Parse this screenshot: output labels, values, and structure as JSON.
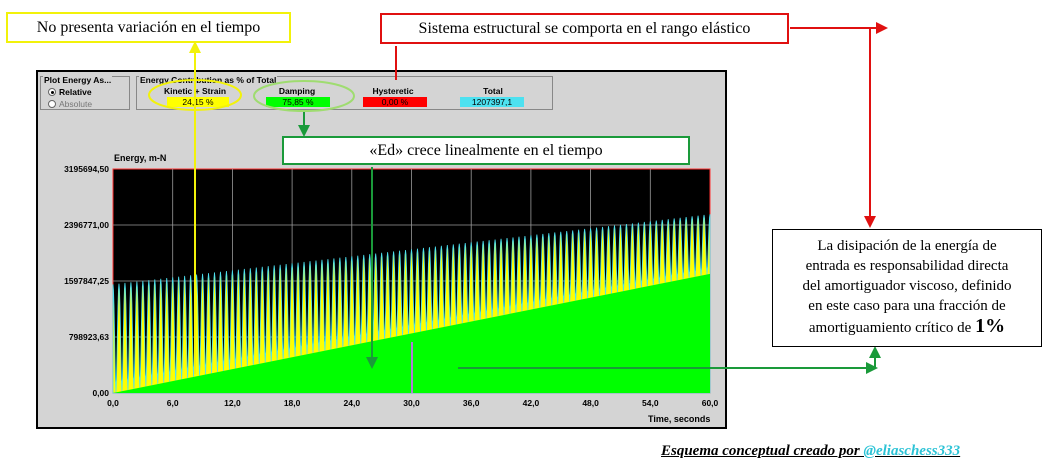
{
  "callouts": {
    "time": "No presenta variación en el tiempo",
    "elastic": "Sistema estructural se comporta en el rango elástico",
    "ed": "«Ed» crece linealmente en el tiempo",
    "dissipation": [
      "La disipación de la energía de",
      "entrada es responsabilidad directa",
      "del amortiguador viscoso, definido",
      "en este caso para una fracción de"
    ],
    "dissipation_last": "amortiguamiento crítico de ",
    "dissipation_pct": "1%"
  },
  "plot_energy": {
    "title": "Plot Energy As...",
    "options": [
      "Relative",
      "Absolute"
    ],
    "selected": "Relative"
  },
  "contribution": {
    "title": "Energy Contribution as % of Total",
    "columns": [
      {
        "label": "Kinetic + Strain",
        "value": "24,15 %",
        "color": "#ffff00"
      },
      {
        "label": "Damping",
        "value": "75,85 %",
        "color": "#00ff00"
      },
      {
        "label": "Hysteretic",
        "value": "0,00 %",
        "color": "#ff0000"
      },
      {
        "label": "Total",
        "value": "1207397,1",
        "color": "#4de1f0"
      }
    ]
  },
  "colors": {
    "yellow_frame": "#f2f20a",
    "red_frame": "#e01010",
    "green_frame": "#1a9a3a",
    "damping": "#00ff00",
    "kinetic": "#ffff00",
    "peaks": "#4de1f0"
  },
  "chart_data": {
    "type": "area",
    "ylabel": "Energy, m-N",
    "xlabel": "Time, seconds",
    "xlim": [
      0,
      60
    ],
    "ylim": [
      0,
      3195694.5
    ],
    "y_ticks": [
      "0,00",
      "798923,63",
      "1597847,25",
      "2396771,00",
      "3195694,50"
    ],
    "y_tick_values": [
      0,
      798923.63,
      1597847.25,
      2396771.0,
      3195694.5
    ],
    "x_ticks": [
      "0,0",
      "6,0",
      "12,0",
      "18,0",
      "24,0",
      "30,0",
      "36,0",
      "42,0",
      "48,0",
      "54,0",
      "60,0"
    ],
    "x_tick_values": [
      0,
      6,
      12,
      18,
      24,
      30,
      36,
      42,
      48,
      54,
      60
    ],
    "grid": true,
    "series": [
      {
        "name": "Damping",
        "x": [
          0,
          60
        ],
        "y": [
          0,
          1700000
        ]
      },
      {
        "name": "Kinetic + Strain",
        "x": [
          0,
          60
        ],
        "y_peak": [
          1550000,
          2550000
        ],
        "oscillation_period": 0.6
      }
    ]
  },
  "credit": {
    "text": "Esquema  conceptual creado por ",
    "handle": "@eliaschess333"
  }
}
